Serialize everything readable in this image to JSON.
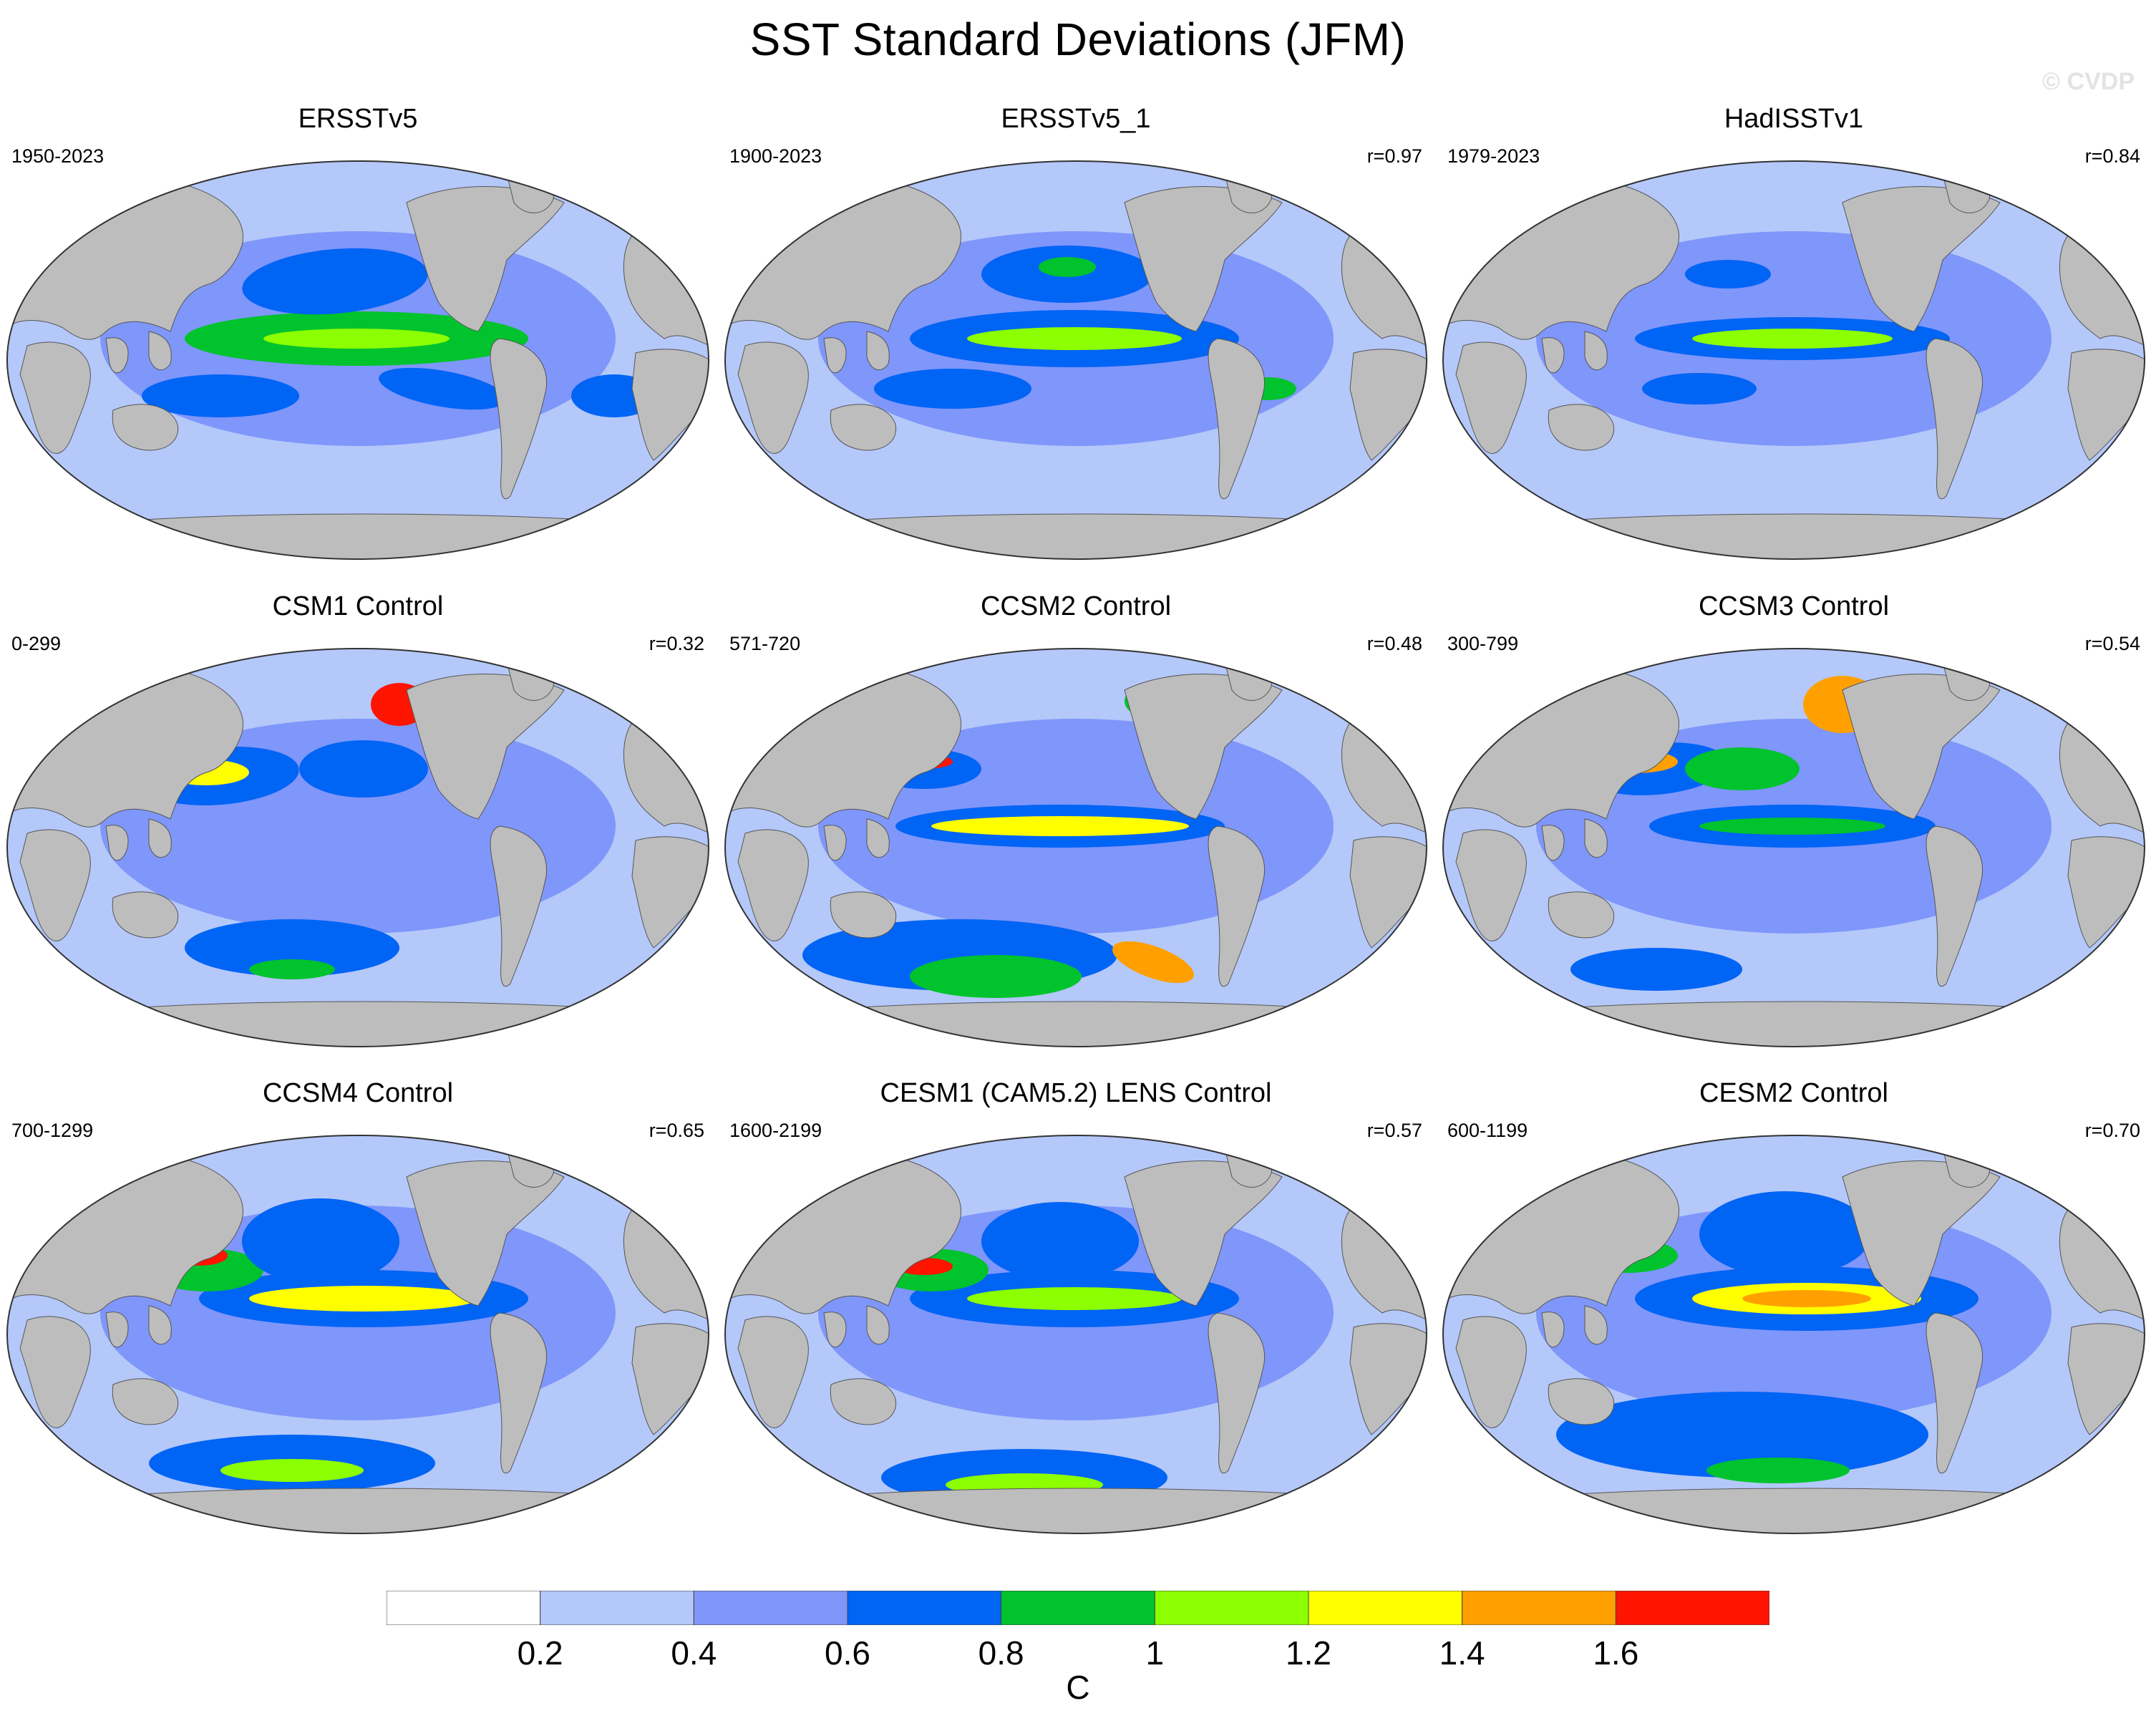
{
  "title": "SST Standard Deviations (JFM)",
  "watermark": "© CVDP",
  "colors": {
    "land": "#bdbdbd",
    "levels": [
      "#ffffff",
      "#b4c8fa",
      "#7f96fa",
      "#0064f5",
      "#00c32d",
      "#8cff00",
      "#ffff00",
      "#ffa000",
      "#ff1400"
    ]
  },
  "panels": [
    {
      "name": "ERSSTv5",
      "years": "1950-2023",
      "r": ""
    },
    {
      "name": "ERSSTv5_1",
      "years": "1900-2023",
      "r": "r=0.97"
    },
    {
      "name": "HadISSTv1",
      "years": "1979-2023",
      "r": "r=0.84"
    },
    {
      "name": "CSM1 Control",
      "years": "0-299",
      "r": "r=0.32"
    },
    {
      "name": "CCSM2 Control",
      "years": "571-720",
      "r": "r=0.48"
    },
    {
      "name": "CCSM3 Control",
      "years": "300-799",
      "r": "r=0.54"
    },
    {
      "name": "CCSM4 Control",
      "years": "700-1299",
      "r": "r=0.65"
    },
    {
      "name": "CESM1 (CAM5.2) LENS Control",
      "years": "1600-2199",
      "r": "r=0.57"
    },
    {
      "name": "CESM2 Control",
      "years": "600-1199",
      "r": "r=0.70"
    }
  ],
  "colorbar": {
    "ticks": [
      "0.2",
      "0.4",
      "0.6",
      "0.8",
      "1",
      "1.2",
      "1.4",
      "1.6"
    ],
    "units": "C"
  }
}
